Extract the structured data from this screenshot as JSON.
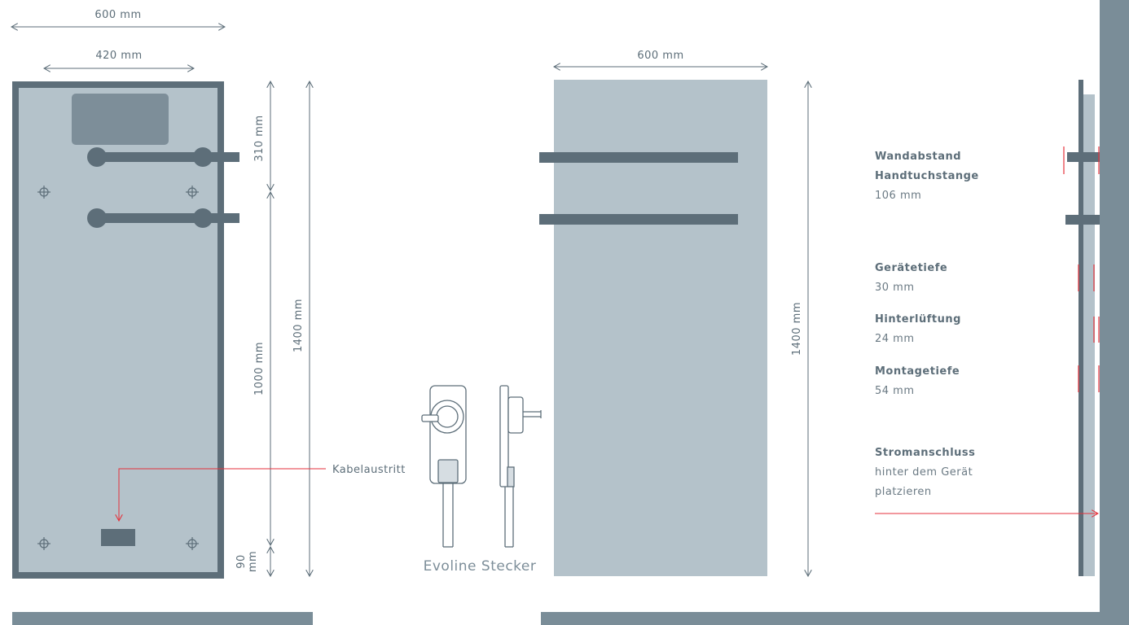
{
  "dimensions": {
    "front_width": "600 mm",
    "bracket_width": "420 mm",
    "side_width": "600 mm",
    "top_offset": "310 mm",
    "bracket_height": "1000 mm",
    "total_height_front": "1400 mm",
    "total_height_side": "1400 mm",
    "bottom_offset_value": "90",
    "bottom_offset_unit": "mm"
  },
  "callouts": {
    "cable_exit": "Kabelaustritt",
    "plug_caption": "Evoline Stecker"
  },
  "specs": [
    {
      "title": "Wandabstand",
      "title2": "Handtuchstange",
      "value": "106 mm"
    },
    {
      "title": "Gerätetiefe",
      "value": "30 mm"
    },
    {
      "title": "Hinterlüftung",
      "value": "24 mm"
    },
    {
      "title": "Montagetiefe",
      "value": "54 mm"
    },
    {
      "title": "Stromanschluss",
      "value": "hinter dem Gerät",
      "value2": "platzieren"
    }
  ],
  "colors": {
    "panel": "#b4c2ca",
    "frame": "#5d6e79",
    "dark_block": "#7d8e99",
    "accent_red": "#e5323c",
    "side_bar": "#7a8d98"
  }
}
